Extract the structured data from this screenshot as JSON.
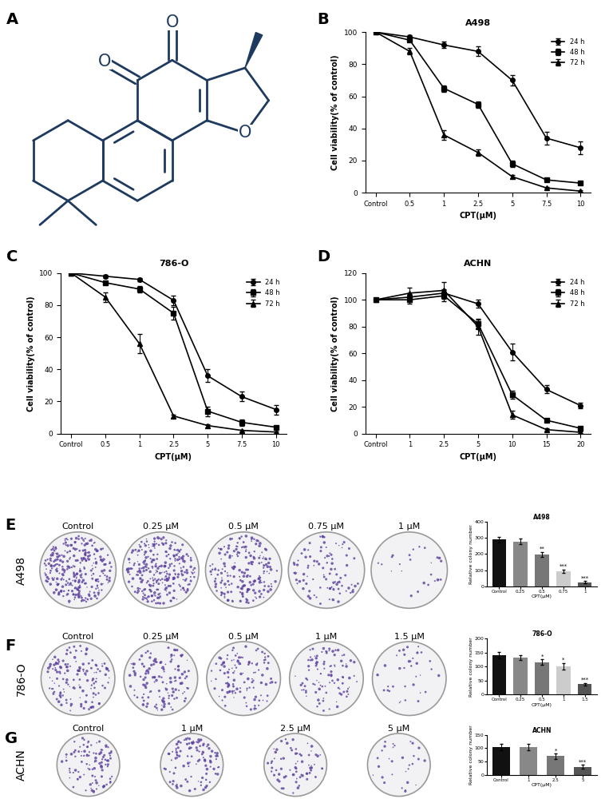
{
  "structure": {
    "panel_label": "A",
    "atoms": [
      "O",
      "O",
      "O"
    ],
    "color": "#1e3a5f"
  },
  "chart_data": [
    {
      "panel_label": "B",
      "type": "line",
      "title": "A498",
      "x_label": "CPT(μM)",
      "y_label": "Cell viability(% of control)",
      "categories": [
        "Control",
        "0.5",
        "1",
        "2.5",
        "5",
        "7.5",
        "10"
      ],
      "ylim": [
        0,
        100
      ],
      "yticks": [
        0,
        20,
        40,
        60,
        80,
        100
      ],
      "legend": "upper right",
      "series": [
        {
          "name": "24 h",
          "color": "#000000",
          "marker": "circle",
          "values": [
            100,
            97,
            92,
            88,
            70,
            34,
            28
          ],
          "errors": [
            0,
            1,
            2,
            3,
            3,
            4,
            4
          ]
        },
        {
          "name": "48 h",
          "color": "#000000",
          "marker": "square",
          "values": [
            100,
            95,
            65,
            55,
            18,
            8,
            6
          ],
          "errors": [
            0,
            1,
            2,
            2,
            2,
            1,
            1
          ]
        },
        {
          "name": "72 h",
          "color": "#000000",
          "marker": "triangle",
          "values": [
            100,
            88,
            36,
            25,
            10,
            3,
            1
          ],
          "errors": [
            0,
            2,
            3,
            2,
            1,
            0.5,
            0.5
          ]
        }
      ]
    },
    {
      "panel_label": "C",
      "type": "line",
      "title": "786-O",
      "x_label": "CPT(μM)",
      "y_label": "Cell viability(% of control)",
      "categories": [
        "Control",
        "0.5",
        "1",
        "2.5",
        "5",
        "7.5",
        "10"
      ],
      "ylim": [
        0,
        100
      ],
      "yticks": [
        0,
        20,
        40,
        60,
        80,
        100
      ],
      "legend": "upper right",
      "series": [
        {
          "name": "24 h",
          "color": "#000000",
          "marker": "circle",
          "values": [
            100,
            98,
            96,
            83,
            36,
            23,
            15
          ],
          "errors": [
            0,
            1,
            1,
            3,
            4,
            3,
            3
          ]
        },
        {
          "name": "48 h",
          "color": "#000000",
          "marker": "square",
          "values": [
            100,
            94,
            90,
            75,
            14,
            7,
            4
          ],
          "errors": [
            0,
            1,
            2,
            4,
            3,
            2,
            1
          ]
        },
        {
          "name": "72 h",
          "color": "#000000",
          "marker": "triangle",
          "values": [
            100,
            85,
            56,
            11,
            5,
            2,
            1
          ],
          "errors": [
            0,
            3,
            6,
            1,
            1,
            0.5,
            0.5
          ]
        }
      ]
    },
    {
      "panel_label": "D",
      "type": "line",
      "title": "ACHN",
      "x_label": "CPT(μM)",
      "y_label": "Cell viability(% of control)",
      "categories": [
        "Control",
        "1",
        "2.5",
        "5",
        "10",
        "15",
        "20"
      ],
      "ylim": [
        0,
        120
      ],
      "yticks": [
        0,
        20,
        40,
        60,
        80,
        100,
        120
      ],
      "legend": "upper right",
      "series": [
        {
          "name": "24 h",
          "color": "#000000",
          "marker": "circle",
          "values": [
            100,
            102,
            105,
            97,
            61,
            33,
            21
          ],
          "errors": [
            0,
            2,
            3,
            3,
            6,
            3,
            2
          ]
        },
        {
          "name": "48 h",
          "color": "#000000",
          "marker": "square",
          "values": [
            100,
            100,
            103,
            82,
            29,
            10,
            4
          ],
          "errors": [
            0,
            3,
            4,
            3,
            3,
            1,
            1
          ]
        },
        {
          "name": "72 h",
          "color": "#000000",
          "marker": "triangle",
          "values": [
            100,
            105,
            107,
            80,
            14,
            3,
            1
          ],
          "errors": [
            0,
            4,
            6,
            6,
            3,
            1,
            0.5
          ]
        }
      ]
    },
    {
      "panel_label": "E",
      "type": "bar",
      "title": "A498",
      "x_label": "CPT(μM)",
      "y_label": "Relative colony number",
      "categories": [
        "Control",
        "0.25",
        "0.5",
        "0.75",
        "1"
      ],
      "values": [
        290,
        278,
        197,
        95,
        25
      ],
      "errors": [
        18,
        18,
        15,
        10,
        6
      ],
      "annotations": [
        null,
        null,
        "**",
        "***",
        "***"
      ],
      "colors": [
        "#111111",
        "#888888",
        "#777777",
        "#cccccc",
        "#555555"
      ],
      "ylim": [
        0,
        400
      ],
      "yticks": [
        0,
        100,
        200,
        300,
        400
      ],
      "plates": {
        "row_label": "A498",
        "titles": [
          "Control",
          "0.25 μM",
          "0.5 μM",
          "0.75 μM",
          "1 μM"
        ]
      }
    },
    {
      "panel_label": "F",
      "type": "bar",
      "title": "786-O",
      "x_label": "CPT(μM)",
      "y_label": "Relative colony number",
      "categories": [
        "Control",
        "0.25",
        "0.5",
        "1",
        "1.5"
      ],
      "values": [
        140,
        132,
        115,
        100,
        37
      ],
      "errors": [
        12,
        8,
        10,
        12,
        5
      ],
      "annotations": [
        null,
        null,
        "*",
        "*",
        "***"
      ],
      "colors": [
        "#111111",
        "#888888",
        "#777777",
        "#cccccc",
        "#555555"
      ],
      "ylim": [
        0,
        200
      ],
      "yticks": [
        0,
        50,
        100,
        150,
        200
      ],
      "plates": {
        "row_label": "786-O",
        "titles": [
          "Control",
          "0.25 μM",
          "0.5 μM",
          "1 μM",
          "1.5 μM"
        ]
      }
    },
    {
      "panel_label": "G",
      "type": "bar",
      "title": "ACHN",
      "x_label": "CPT(μM)",
      "y_label": "Relative colony number",
      "categories": [
        "Control",
        "1",
        "2.5",
        "5"
      ],
      "values": [
        103,
        105,
        70,
        30
      ],
      "errors": [
        12,
        12,
        10,
        8
      ],
      "annotations": [
        null,
        null,
        "*",
        "***"
      ],
      "colors": [
        "#111111",
        "#888888",
        "#777777",
        "#555555"
      ],
      "ylim": [
        0,
        150
      ],
      "yticks": [
        0,
        50,
        100,
        150
      ],
      "plates": {
        "row_label": "ACHN",
        "titles": [
          "Control",
          "1 μM",
          "2.5 μM",
          "5 μM"
        ]
      }
    }
  ]
}
